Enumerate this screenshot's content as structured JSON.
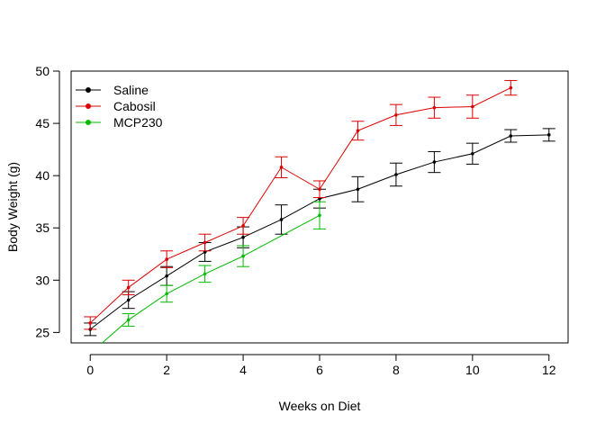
{
  "chart_data": {
    "type": "line",
    "title": "",
    "xlabel": "Weeks on Diet",
    "ylabel": "Body Weight (g)",
    "xlim": [
      -0.5,
      12.5
    ],
    "ylim": [
      24,
      50
    ],
    "xticks": [
      0,
      2,
      4,
      6,
      8,
      10,
      12
    ],
    "yticks": [
      25,
      30,
      35,
      40,
      45,
      50
    ],
    "legend_position": "top-left",
    "series": [
      {
        "name": "Saline",
        "color": "#000000",
        "x": [
          0,
          1,
          2,
          3,
          4,
          5,
          6,
          7,
          8,
          9,
          10,
          11,
          12
        ],
        "y": [
          25.3,
          28.1,
          30.4,
          32.7,
          34.1,
          35.8,
          37.8,
          38.7,
          40.1,
          41.3,
          42.1,
          43.8,
          43.9
        ],
        "err": [
          0.6,
          0.8,
          0.9,
          0.9,
          1.0,
          1.4,
          0.9,
          1.2,
          1.1,
          1.0,
          1.0,
          0.6,
          0.6
        ]
      },
      {
        "name": "Cabosil",
        "color": "#dd0000",
        "x": [
          0,
          1,
          2,
          3,
          4,
          5,
          6,
          7,
          8,
          9,
          10,
          11
        ],
        "y": [
          25.9,
          29.3,
          32.0,
          33.6,
          35.2,
          40.8,
          38.7,
          44.3,
          45.8,
          46.5,
          46.6,
          48.4
        ],
        "err": [
          0.6,
          0.7,
          0.8,
          0.8,
          0.8,
          1.0,
          0.8,
          0.9,
          1.0,
          1.0,
          1.1,
          0.7
        ]
      },
      {
        "name": "MCP230",
        "color": "#00bb00",
        "x": [
          0,
          1,
          2,
          3,
          4,
          6
        ],
        "y": [
          23.0,
          26.2,
          28.7,
          30.6,
          32.3,
          36.2
        ],
        "err": [
          0.5,
          0.6,
          0.8,
          0.8,
          1.0,
          1.3
        ]
      }
    ]
  }
}
